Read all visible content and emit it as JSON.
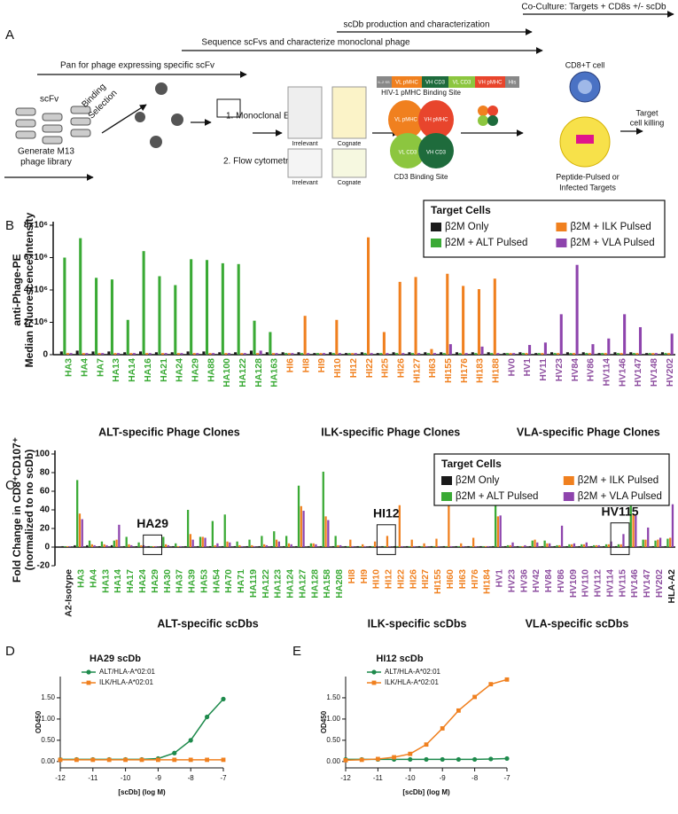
{
  "diagram": {
    "panel": "A",
    "coculture": "Co-Culture: Targets + CD8s +/- scDb",
    "production": "scDb production and characterization",
    "sequence": "Sequence scFvs and characterize monoclonal phage",
    "pan": "Pan for phage expressing specific scFv",
    "scfv": "scFv",
    "library": [
      "Generate M13",
      "phage library"
    ],
    "selection": [
      "Binding",
      "Selection"
    ],
    "elisa": "1. Monoclonal ELISA",
    "flow": "2. Flow cytometry",
    "elisa_labels": [
      "Irrelevant",
      "Cognate"
    ],
    "flow_labels": [
      "Irrelevant",
      "Cognate"
    ],
    "construct": [
      "IL-2 SS",
      "VL pMHC",
      "VH CD3",
      "VL CD3",
      "VH pMHC",
      "His"
    ],
    "pmhc_site": "HIV-1 pMHC Binding Site",
    "cd3_site": "CD3 Binding Site",
    "domains": [
      "VL pMHC",
      "VH pMHC",
      "VH CD3",
      "VL CD3"
    ],
    "tcell": "CD8+T cell",
    "killing": [
      "Target",
      "cell killing"
    ],
    "targets": [
      "Peptide-Pulsed or",
      "Infected Targets"
    ]
  },
  "chart_data": [
    {
      "type": "bar",
      "panel": "B",
      "ylabel": [
        "anti-Phage-PE",
        "Median Fluorescence Intensity"
      ],
      "categories": [
        "HA3",
        "HA4",
        "HA7",
        "HA13",
        "HA14",
        "HA16",
        "HA21",
        "HA24",
        "HA29",
        "HA88",
        "HA100",
        "HA122",
        "HA128",
        "HA163",
        "HI6",
        "HI8",
        "HI9",
        "HI10",
        "HI12",
        "HI22",
        "HI25",
        "HI26",
        "HI127",
        "HI63",
        "HI155",
        "HI176",
        "HI183",
        "HI188",
        "HV0",
        "HV1",
        "HV11",
        "HV23",
        "HV84",
        "HV86",
        "HV114",
        "HV146",
        "HV147",
        "HV148",
        "HV202"
      ],
      "category_colors": [
        "#3aaa35",
        "#3aaa35",
        "#3aaa35",
        "#3aaa35",
        "#3aaa35",
        "#3aaa35",
        "#3aaa35",
        "#3aaa35",
        "#3aaa35",
        "#3aaa35",
        "#3aaa35",
        "#3aaa35",
        "#3aaa35",
        "#3aaa35",
        "#f0801f",
        "#f0801f",
        "#f0801f",
        "#f0801f",
        "#f0801f",
        "#f0801f",
        "#f0801f",
        "#f0801f",
        "#f0801f",
        "#f0801f",
        "#f0801f",
        "#f0801f",
        "#f0801f",
        "#f0801f",
        "#8e4fa0",
        "#8e4fa0",
        "#8e4fa0",
        "#8e4fa0",
        "#8e4fa0",
        "#8e4fa0",
        "#8e4fa0",
        "#8e4fa0",
        "#8e4fa0",
        "#8e4fa0",
        "#8e4fa0"
      ],
      "groups": [
        {
          "label": "ALT-specific Phage Clones",
          "color": "#3aaa35"
        },
        {
          "label": "ILK-specific Phage Clones",
          "color": "#f0801f"
        },
        {
          "label": "VLA-specific Phage Clones",
          "color": "#8e4fa0"
        }
      ],
      "legend_title": "Target Cells",
      "legend": "upper right",
      "series": [
        {
          "name": "β2M Only",
          "color": "#1a1a1a",
          "values": [
            200000,
            250000,
            200000,
            200000,
            150000,
            200000,
            150000,
            150000,
            200000,
            200000,
            150000,
            150000,
            250000,
            150000,
            150000,
            150000,
            100000,
            150000,
            100000,
            150000,
            100000,
            150000,
            150000,
            150000,
            150000,
            150000,
            150000,
            150000,
            100000,
            150000,
            100000,
            150000,
            150000,
            150000,
            100000,
            150000,
            150000,
            100000,
            150000
          ]
        },
        {
          "name": "β2M + ALT Pulsed",
          "color": "#3aaa35",
          "values": [
            6000000,
            7200000,
            4750000,
            4650000,
            2150000,
            6400000,
            4850000,
            4300000,
            5900000,
            5850000,
            5650000,
            5600000,
            2100000,
            1400000,
            100000,
            100000,
            100000,
            100000,
            100000,
            100000,
            100000,
            100000,
            100000,
            100000,
            100000,
            100000,
            100000,
            100000,
            100000,
            100000,
            100000,
            100000,
            100000,
            100000,
            100000,
            100000,
            100000,
            100000,
            100000
          ]
        },
        {
          "name": "β2M + ILK Pulsed",
          "color": "#f0801f",
          "values": [
            100000,
            100000,
            100000,
            100000,
            100000,
            100000,
            100000,
            100000,
            100000,
            100000,
            100000,
            100000,
            100000,
            100000,
            100000,
            2400000,
            100000,
            2150000,
            100000,
            7250000,
            1400000,
            4500000,
            4800000,
            350000,
            5000000,
            4250000,
            4050000,
            4700000,
            100000,
            100000,
            100000,
            100000,
            100000,
            100000,
            100000,
            100000,
            100000,
            100000,
            100000
          ]
        },
        {
          "name": "β2M + VLA Pulsed",
          "color": "#8e44ad",
          "values": [
            100000,
            100000,
            100000,
            100000,
            100000,
            100000,
            100000,
            100000,
            100000,
            100000,
            100000,
            100000,
            250000,
            100000,
            100000,
            100000,
            100000,
            100000,
            100000,
            100000,
            100000,
            100000,
            100000,
            100000,
            650000,
            100000,
            500000,
            100000,
            100000,
            600000,
            750000,
            2500000,
            5550000,
            650000,
            1000000,
            2500000,
            1700000,
            100000,
            1300000
          ]
        }
      ],
      "ylim": [
        0,
        8000000
      ],
      "yticks": [
        0,
        {
          "value": 2000000,
          "label": "2×10⁶"
        },
        {
          "value": 4000000,
          "label": "4×10⁶"
        },
        {
          "value": 6000000,
          "label": "6×10⁶"
        },
        {
          "value": 8000000,
          "label": "8×10⁶"
        }
      ],
      "grid": false
    },
    {
      "type": "bar",
      "panel": "C",
      "ylabel": [
        "Fold Change in CD8⁺CD107⁺",
        "(normalized to no scDb)"
      ],
      "categories": [
        "A2-Isotype",
        "HA3",
        "HA4",
        "HA13",
        "HA14",
        "HA17",
        "HA24",
        "HA29",
        "HA30",
        "HA37",
        "HA39",
        "HA53",
        "HA54",
        "HA70",
        "HA71",
        "HA119",
        "HA122",
        "HA123",
        "HA124",
        "HA127",
        "HA128",
        "HA158",
        "HA208",
        "HI8",
        "HI9",
        "HI10",
        "HI12",
        "HI22",
        "HI26",
        "HI27",
        "HI155",
        "HI60",
        "HI63",
        "HI76",
        "HI184",
        "HV1",
        "HV23",
        "HV36",
        "HV42",
        "HV84",
        "HV86",
        "HV109",
        "HV110",
        "HV112",
        "HV114",
        "HV115",
        "HV146",
        "HV147",
        "HV202",
        "HLA-A2"
      ],
      "category_colors": [
        "#1a1a1a",
        "#3aaa35",
        "#3aaa35",
        "#3aaa35",
        "#3aaa35",
        "#3aaa35",
        "#3aaa35",
        "#3aaa35",
        "#3aaa35",
        "#3aaa35",
        "#3aaa35",
        "#3aaa35",
        "#3aaa35",
        "#3aaa35",
        "#3aaa35",
        "#3aaa35",
        "#3aaa35",
        "#3aaa35",
        "#3aaa35",
        "#3aaa35",
        "#3aaa35",
        "#3aaa35",
        "#3aaa35",
        "#f0801f",
        "#f0801f",
        "#f0801f",
        "#f0801f",
        "#f0801f",
        "#f0801f",
        "#f0801f",
        "#f0801f",
        "#f0801f",
        "#f0801f",
        "#f0801f",
        "#f0801f",
        "#8e4fa0",
        "#8e4fa0",
        "#8e4fa0",
        "#8e4fa0",
        "#8e4fa0",
        "#8e4fa0",
        "#8e4fa0",
        "#8e4fa0",
        "#8e4fa0",
        "#8e4fa0",
        "#8e4fa0",
        "#8e4fa0",
        "#8e4fa0",
        "#8e4fa0",
        "#1a1a1a"
      ],
      "groups": [
        {
          "label": "ALT-specific scDbs",
          "color": "#3aaa35"
        },
        {
          "label": "ILK-specific scDbs",
          "color": "#f0801f"
        },
        {
          "label": "VLA-specific scDbs",
          "color": "#8e4fa0"
        }
      ],
      "annotations": [
        "HA29",
        "HI12",
        "HV115"
      ],
      "legend_title": "Target Cells",
      "legend": "upper right",
      "series": [
        {
          "name": "β2M Only",
          "color": "#1a1a1a",
          "values": [
            1,
            2,
            2,
            1,
            2,
            1,
            1,
            1,
            1,
            1,
            1,
            1,
            1,
            1,
            1,
            1,
            1,
            1,
            1,
            1,
            1,
            1,
            1,
            1,
            1,
            1,
            1,
            1,
            1,
            1,
            1,
            1,
            1,
            1,
            1,
            1,
            1,
            1,
            1,
            1,
            1,
            1,
            1,
            1,
            1,
            1,
            1,
            1,
            1,
            1
          ]
        },
        {
          "name": "β2M + ALT Pulsed",
          "color": "#3aaa35",
          "values": [
            1,
            72,
            7,
            6,
            7,
            11,
            5,
            1,
            11,
            4,
            40,
            11,
            28,
            35,
            6,
            8,
            12,
            17,
            12,
            66,
            4,
            81,
            12,
            1,
            1,
            1,
            1,
            1,
            1,
            1,
            1,
            1,
            1,
            1,
            1,
            45,
            2,
            1,
            7,
            7,
            2,
            3,
            3,
            2,
            3,
            3,
            45,
            8,
            7,
            9
          ]
        },
        {
          "name": "β2M + ILK Pulsed",
          "color": "#f0801f",
          "values": [
            1,
            36,
            3,
            3,
            8,
            3,
            2,
            1,
            3,
            1,
            14,
            11,
            2,
            6,
            2,
            2,
            3,
            8,
            4,
            44,
            4,
            33,
            2,
            8,
            3,
            6,
            12,
            45,
            8,
            4,
            9,
            50,
            4,
            10,
            1,
            33,
            2,
            1,
            8,
            4,
            2,
            3,
            3,
            2,
            3,
            3,
            35,
            8,
            8,
            10
          ]
        },
        {
          "name": "β2M + VLA Pulsed",
          "color": "#8e44ad",
          "values": [
            1,
            30,
            2,
            2,
            24,
            2,
            2,
            1,
            2,
            1,
            8,
            10,
            4,
            5,
            1,
            1,
            2,
            6,
            3,
            39,
            3,
            29,
            2,
            1,
            1,
            1,
            1,
            1,
            1,
            1,
            1,
            1,
            1,
            1,
            1,
            34,
            5,
            2,
            5,
            4,
            23,
            4,
            5,
            2,
            6,
            14,
            34,
            21,
            10,
            46
          ]
        }
      ],
      "ylim": [
        -20,
        100
      ],
      "yticks": [
        -20,
        0,
        20,
        40,
        60,
        80,
        100
      ],
      "grid": false
    },
    {
      "type": "line",
      "panel": "D",
      "title": "HA29 scDb",
      "xlabel": "[scDb] (log M)",
      "ylabel": "OD450",
      "legend": "upper left",
      "x": [
        -12,
        -11.5,
        -11,
        -10.5,
        -10,
        -9.5,
        -9,
        -8.5,
        -8,
        -7.5,
        -7
      ],
      "series": [
        {
          "name": "ALT/HLA-A*02:01",
          "color": "#1e8a4c",
          "values": [
            0.05,
            0.05,
            0.05,
            0.05,
            0.05,
            0.05,
            0.07,
            0.2,
            0.5,
            1.05,
            1.47
          ]
        },
        {
          "name": "ILK/HLA-A*02:01",
          "color": "#f0801f",
          "values": [
            0.04,
            0.04,
            0.04,
            0.04,
            0.04,
            0.04,
            0.04,
            0.04,
            0.04,
            0.04,
            0.04
          ]
        }
      ],
      "xlim": [
        -12,
        -7
      ],
      "xticks": [
        -12,
        -11,
        -10,
        -9,
        -8,
        -7
      ],
      "ylim": [
        -0.15,
        2
      ],
      "yticks": [
        {
          "value": 0,
          "label": "0.00"
        },
        {
          "value": 0.5,
          "label": "0.50"
        },
        {
          "value": 1,
          "label": "1.00"
        },
        {
          "value": 1.5,
          "label": "1.50"
        }
      ]
    },
    {
      "type": "line",
      "panel": "E",
      "title": "HI12 scDb",
      "xlabel": "[scDb] (log M)",
      "ylabel": "OD450",
      "legend": "upper left",
      "x": [
        -12,
        -11.5,
        -11,
        -10.5,
        -10,
        -9.5,
        -9,
        -8.5,
        -8,
        -7.5,
        -7
      ],
      "series": [
        {
          "name": "ALT/HLA-A*02:01",
          "color": "#1e8a4c",
          "values": [
            0.05,
            0.05,
            0.05,
            0.05,
            0.05,
            0.05,
            0.05,
            0.05,
            0.05,
            0.06,
            0.07
          ]
        },
        {
          "name": "ILK/HLA-A*02:01",
          "color": "#f0801f",
          "values": [
            0.03,
            0.04,
            0.06,
            0.1,
            0.18,
            0.4,
            0.78,
            1.2,
            1.52,
            1.82,
            1.93
          ]
        }
      ],
      "xlim": [
        -12,
        -7
      ],
      "xticks": [
        -12,
        -11,
        -10,
        -9,
        -8,
        -7
      ],
      "ylim": [
        -0.15,
        2
      ],
      "yticks": [
        {
          "value": 0,
          "label": "0.00"
        },
        {
          "value": 0.5,
          "label": "0.50"
        },
        {
          "value": 1,
          "label": "1.00"
        },
        {
          "value": 1.5,
          "label": "1.50"
        }
      ]
    }
  ]
}
